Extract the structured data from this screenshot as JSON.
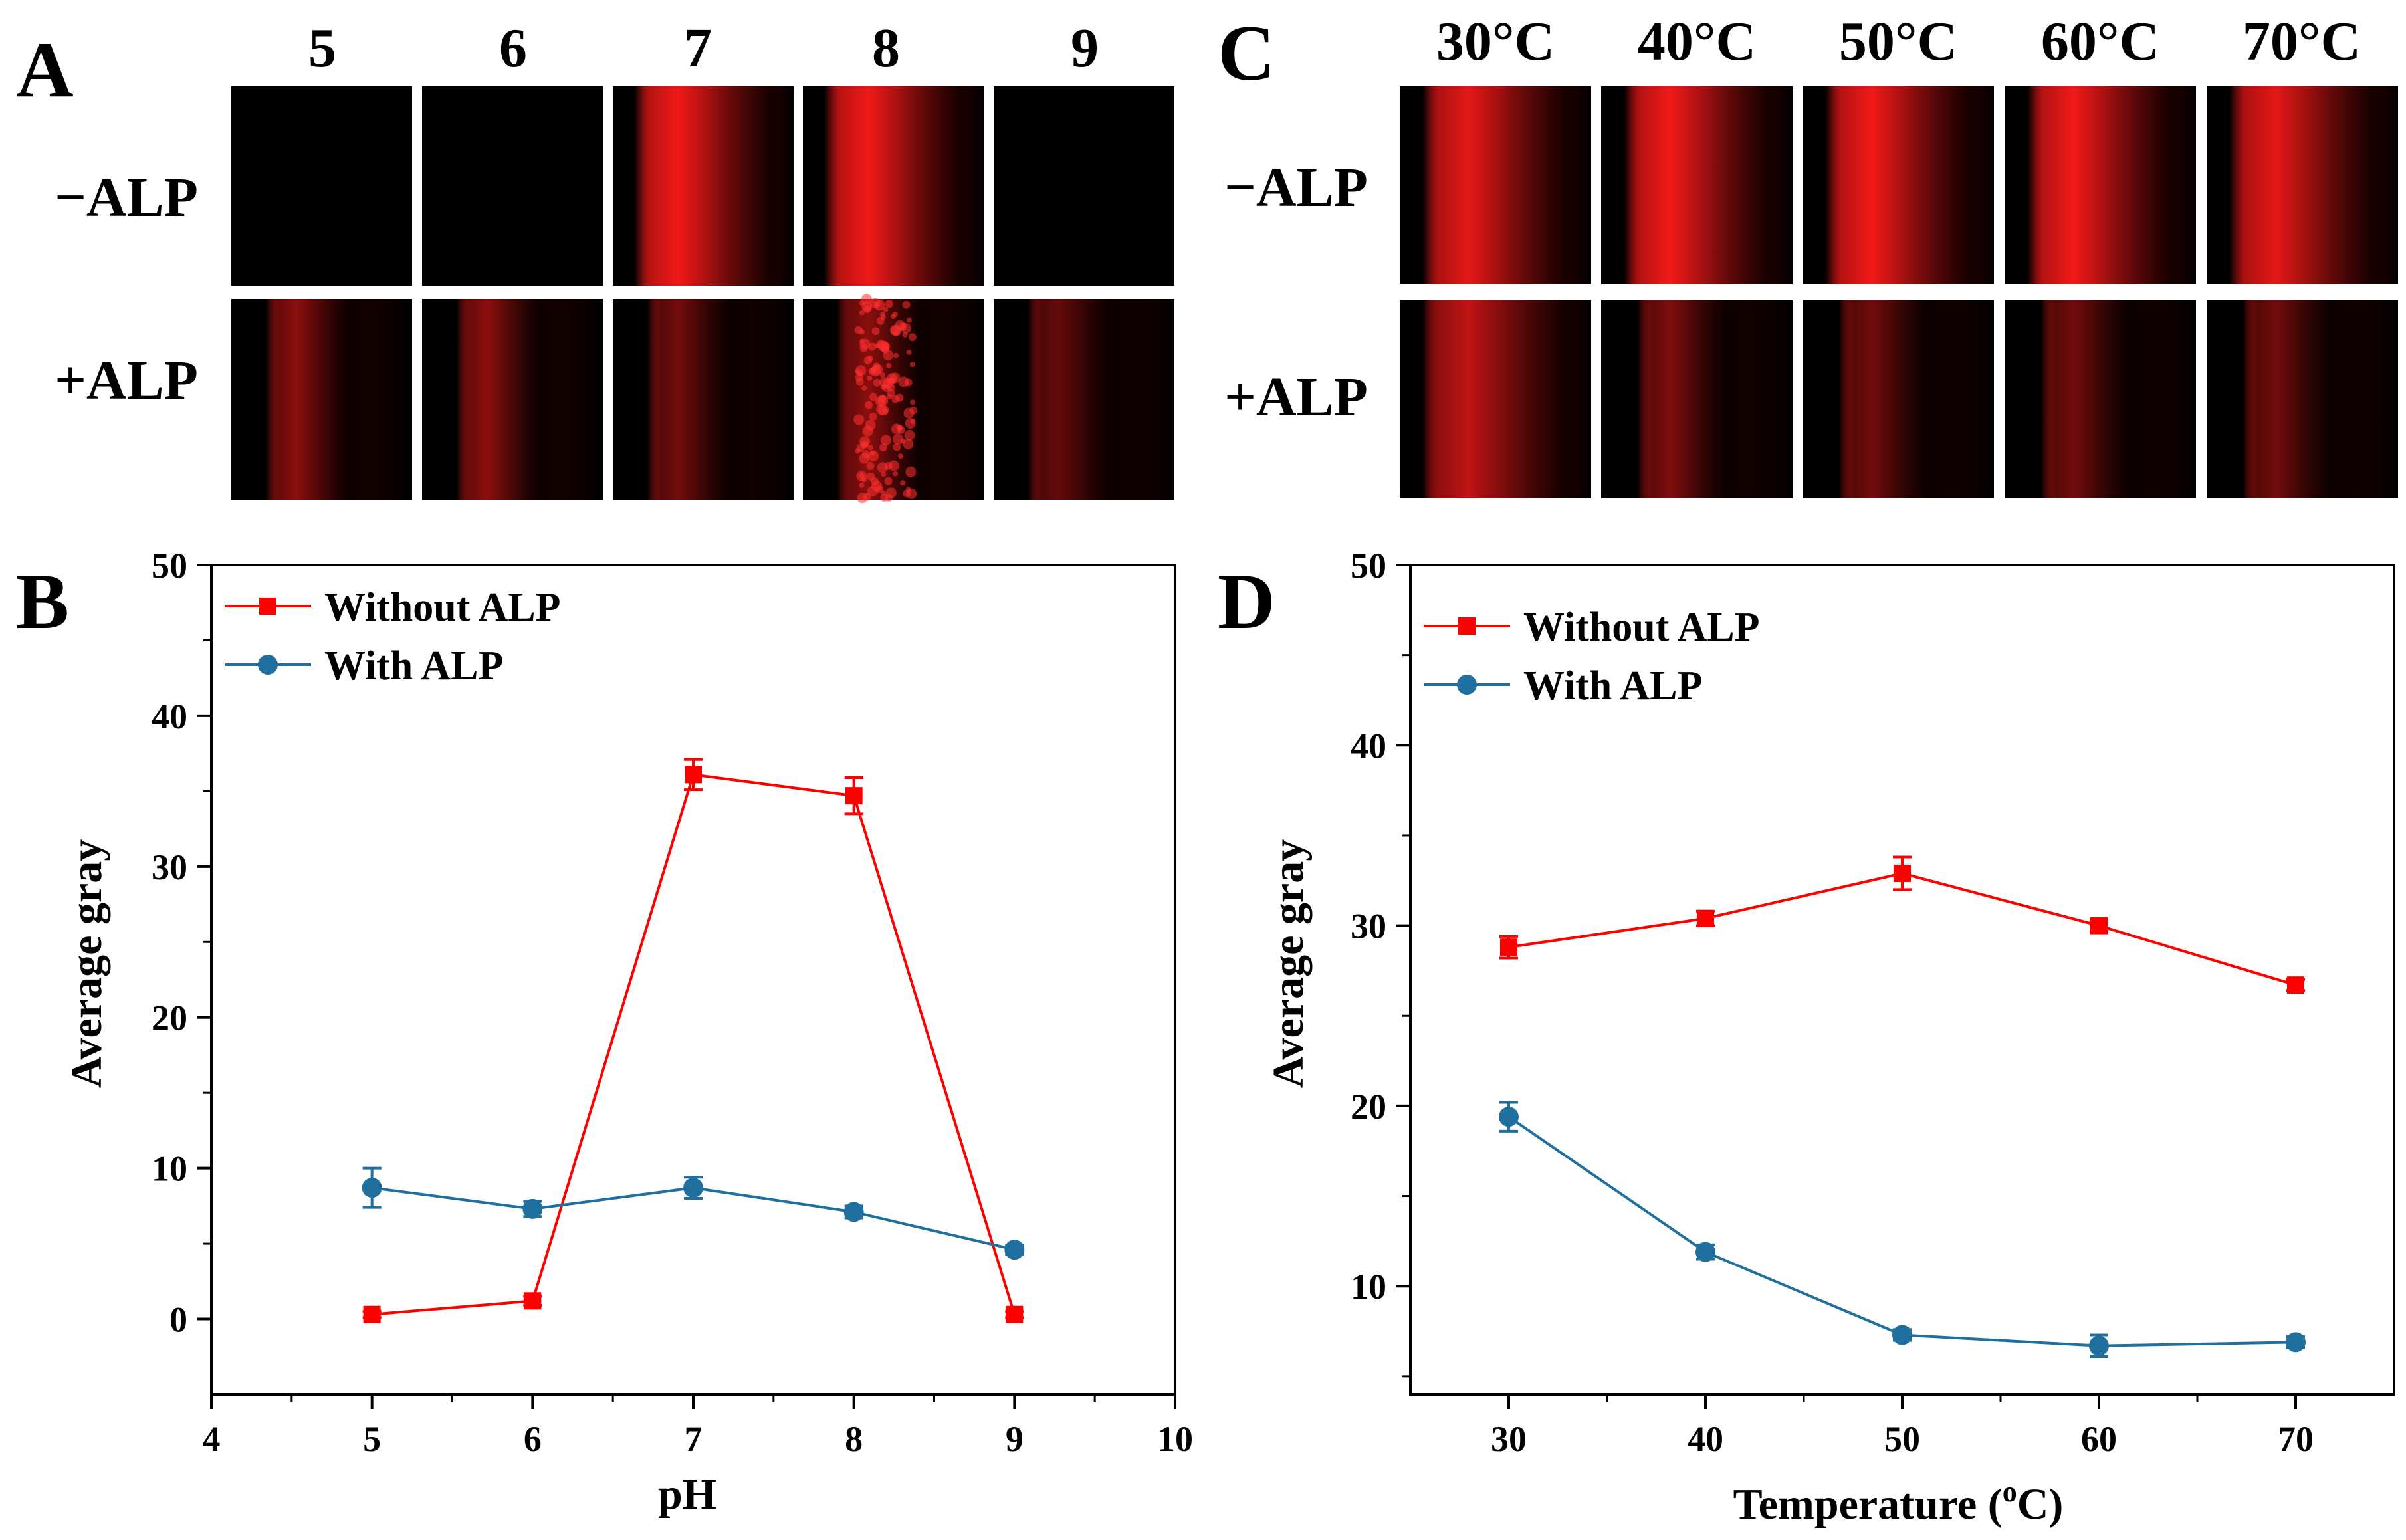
{
  "panels": {
    "A": {
      "letter": "A",
      "columns": [
        "5",
        "6",
        "7",
        "8",
        "9"
      ],
      "rows": [
        "−ALP",
        "+ALP"
      ]
    },
    "C": {
      "letter": "C",
      "columns": [
        "30°C",
        "40°C",
        "50°C",
        "60°C",
        "70°C"
      ],
      "rows": [
        "−ALP",
        "+ALP"
      ]
    }
  },
  "colors": {
    "without_alp": "#ff0000",
    "with_alp": "#1f6f9f",
    "axis": "#000000",
    "fluor": "#ff1a1a"
  },
  "fluorescence": {
    "A": {
      "minus_alp": [
        0.0,
        0.0,
        0.95,
        0.95,
        0.0
      ],
      "plus_alp": [
        0.55,
        0.55,
        0.45,
        0.55,
        0.4
      ]
    },
    "C": {
      "minus_alp": [
        0.9,
        0.95,
        0.95,
        0.95,
        0.9
      ],
      "plus_alp": [
        0.75,
        0.5,
        0.45,
        0.45,
        0.45
      ]
    }
  },
  "chart_data": [
    {
      "panel_letter": "B",
      "type": "line",
      "title": "",
      "xlabel": "pH",
      "ylabel": "Average gray",
      "xlim": [
        4,
        10
      ],
      "ylim": [
        -5,
        50
      ],
      "xticks": [
        4,
        5,
        6,
        7,
        8,
        9,
        10
      ],
      "xtick_labels": [
        "4",
        "5",
        "6",
        "7",
        "8",
        "9",
        "10"
      ],
      "yticks": [
        0,
        10,
        20,
        30,
        40,
        50
      ],
      "ytick_labels": [
        "0",
        "10",
        "20",
        "30",
        "40",
        "50"
      ],
      "x": [
        5,
        6,
        7,
        8,
        9
      ],
      "legend_position": "top-left",
      "series": [
        {
          "name": "Without ALP",
          "marker": "square",
          "color": "#ff0000",
          "values": [
            0.3,
            1.2,
            36.1,
            34.7,
            0.3
          ],
          "errors": [
            0.2,
            0.3,
            1.0,
            1.2,
            0.2
          ]
        },
        {
          "name": "With ALP",
          "marker": "circle",
          "color": "#1f6f9f",
          "values": [
            8.7,
            7.3,
            8.7,
            7.1,
            4.6
          ],
          "errors": [
            1.3,
            0.5,
            0.7,
            0.4,
            0.3
          ]
        }
      ]
    },
    {
      "panel_letter": "D",
      "type": "line",
      "title": "",
      "xlabel": "Temperature (",
      "xlabel_sup": "o",
      "xlabel_tail": "C)",
      "ylabel": "Average gray",
      "xlim": [
        25,
        75
      ],
      "ylim": [
        4,
        50
      ],
      "xticks": [
        30,
        40,
        50,
        60,
        70
      ],
      "xtick_labels": [
        "30",
        "40",
        "50",
        "60",
        "70"
      ],
      "yticks": [
        10,
        20,
        30,
        40,
        50
      ],
      "ytick_labels": [
        "10",
        "20",
        "30",
        "40",
        "50"
      ],
      "x": [
        30,
        40,
        50,
        60,
        70
      ],
      "legend_position": "top-left",
      "series": [
        {
          "name": "Without ALP",
          "marker": "square",
          "color": "#ff0000",
          "values": [
            28.8,
            30.4,
            32.9,
            30.0,
            26.7
          ],
          "errors": [
            0.6,
            0.4,
            0.9,
            0.3,
            0.3
          ]
        },
        {
          "name": "With ALP",
          "marker": "circle",
          "color": "#1f6f9f",
          "values": [
            19.4,
            11.9,
            7.3,
            6.7,
            6.9
          ],
          "errors": [
            0.8,
            0.4,
            0.3,
            0.6,
            0.3
          ]
        }
      ]
    }
  ]
}
